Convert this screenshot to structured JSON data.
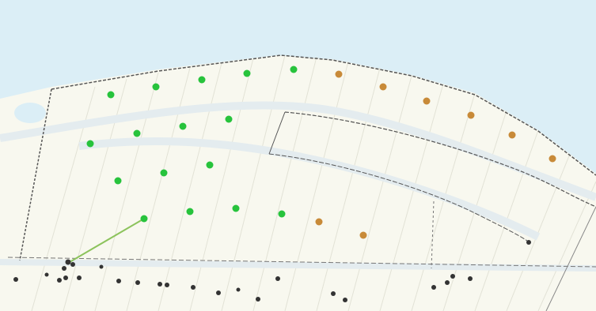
{
  "map": {
    "colors": {
      "water": "#dbeef6",
      "land": "#f8f8ef",
      "road": "#e4ecef",
      "line_dark": "#555555",
      "cable": "#8cc35c",
      "turbine_green": "#27c33c",
      "turbine_orange": "#c88a38",
      "point_dark": "#333333"
    },
    "markers": {
      "green_turbine_count": 19,
      "orange_turbine_count": 8
    }
  }
}
